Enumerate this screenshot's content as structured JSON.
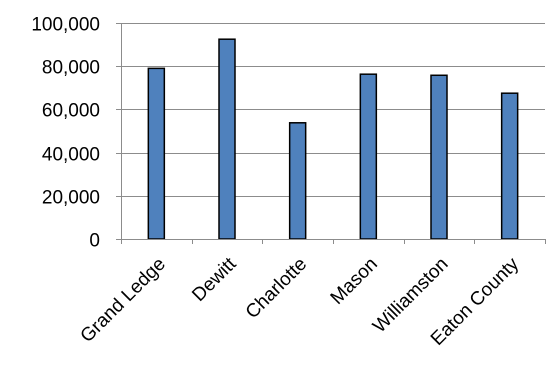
{
  "chart_data": {
    "type": "bar",
    "title": "",
    "xlabel": "",
    "ylabel": "",
    "categories": [
      "Grand Ledge",
      "Dewitt",
      "Charlotte",
      "Mason",
      "Williamston",
      "Eaton County"
    ],
    "values": [
      79000,
      92500,
      53800,
      76300,
      75800,
      67500
    ],
    "ylim": [
      0,
      100000
    ],
    "yticks": [
      0,
      20000,
      40000,
      60000,
      80000,
      100000
    ],
    "ytick_labels": [
      "0",
      "20,000",
      "40,000",
      "60,000",
      "80,000",
      "100,000"
    ],
    "grid": true,
    "legend": "none",
    "colors": {
      "bar_fill": "#4f81bd",
      "bar_stroke": "#000000",
      "grid": "#8c8c8c"
    }
  }
}
